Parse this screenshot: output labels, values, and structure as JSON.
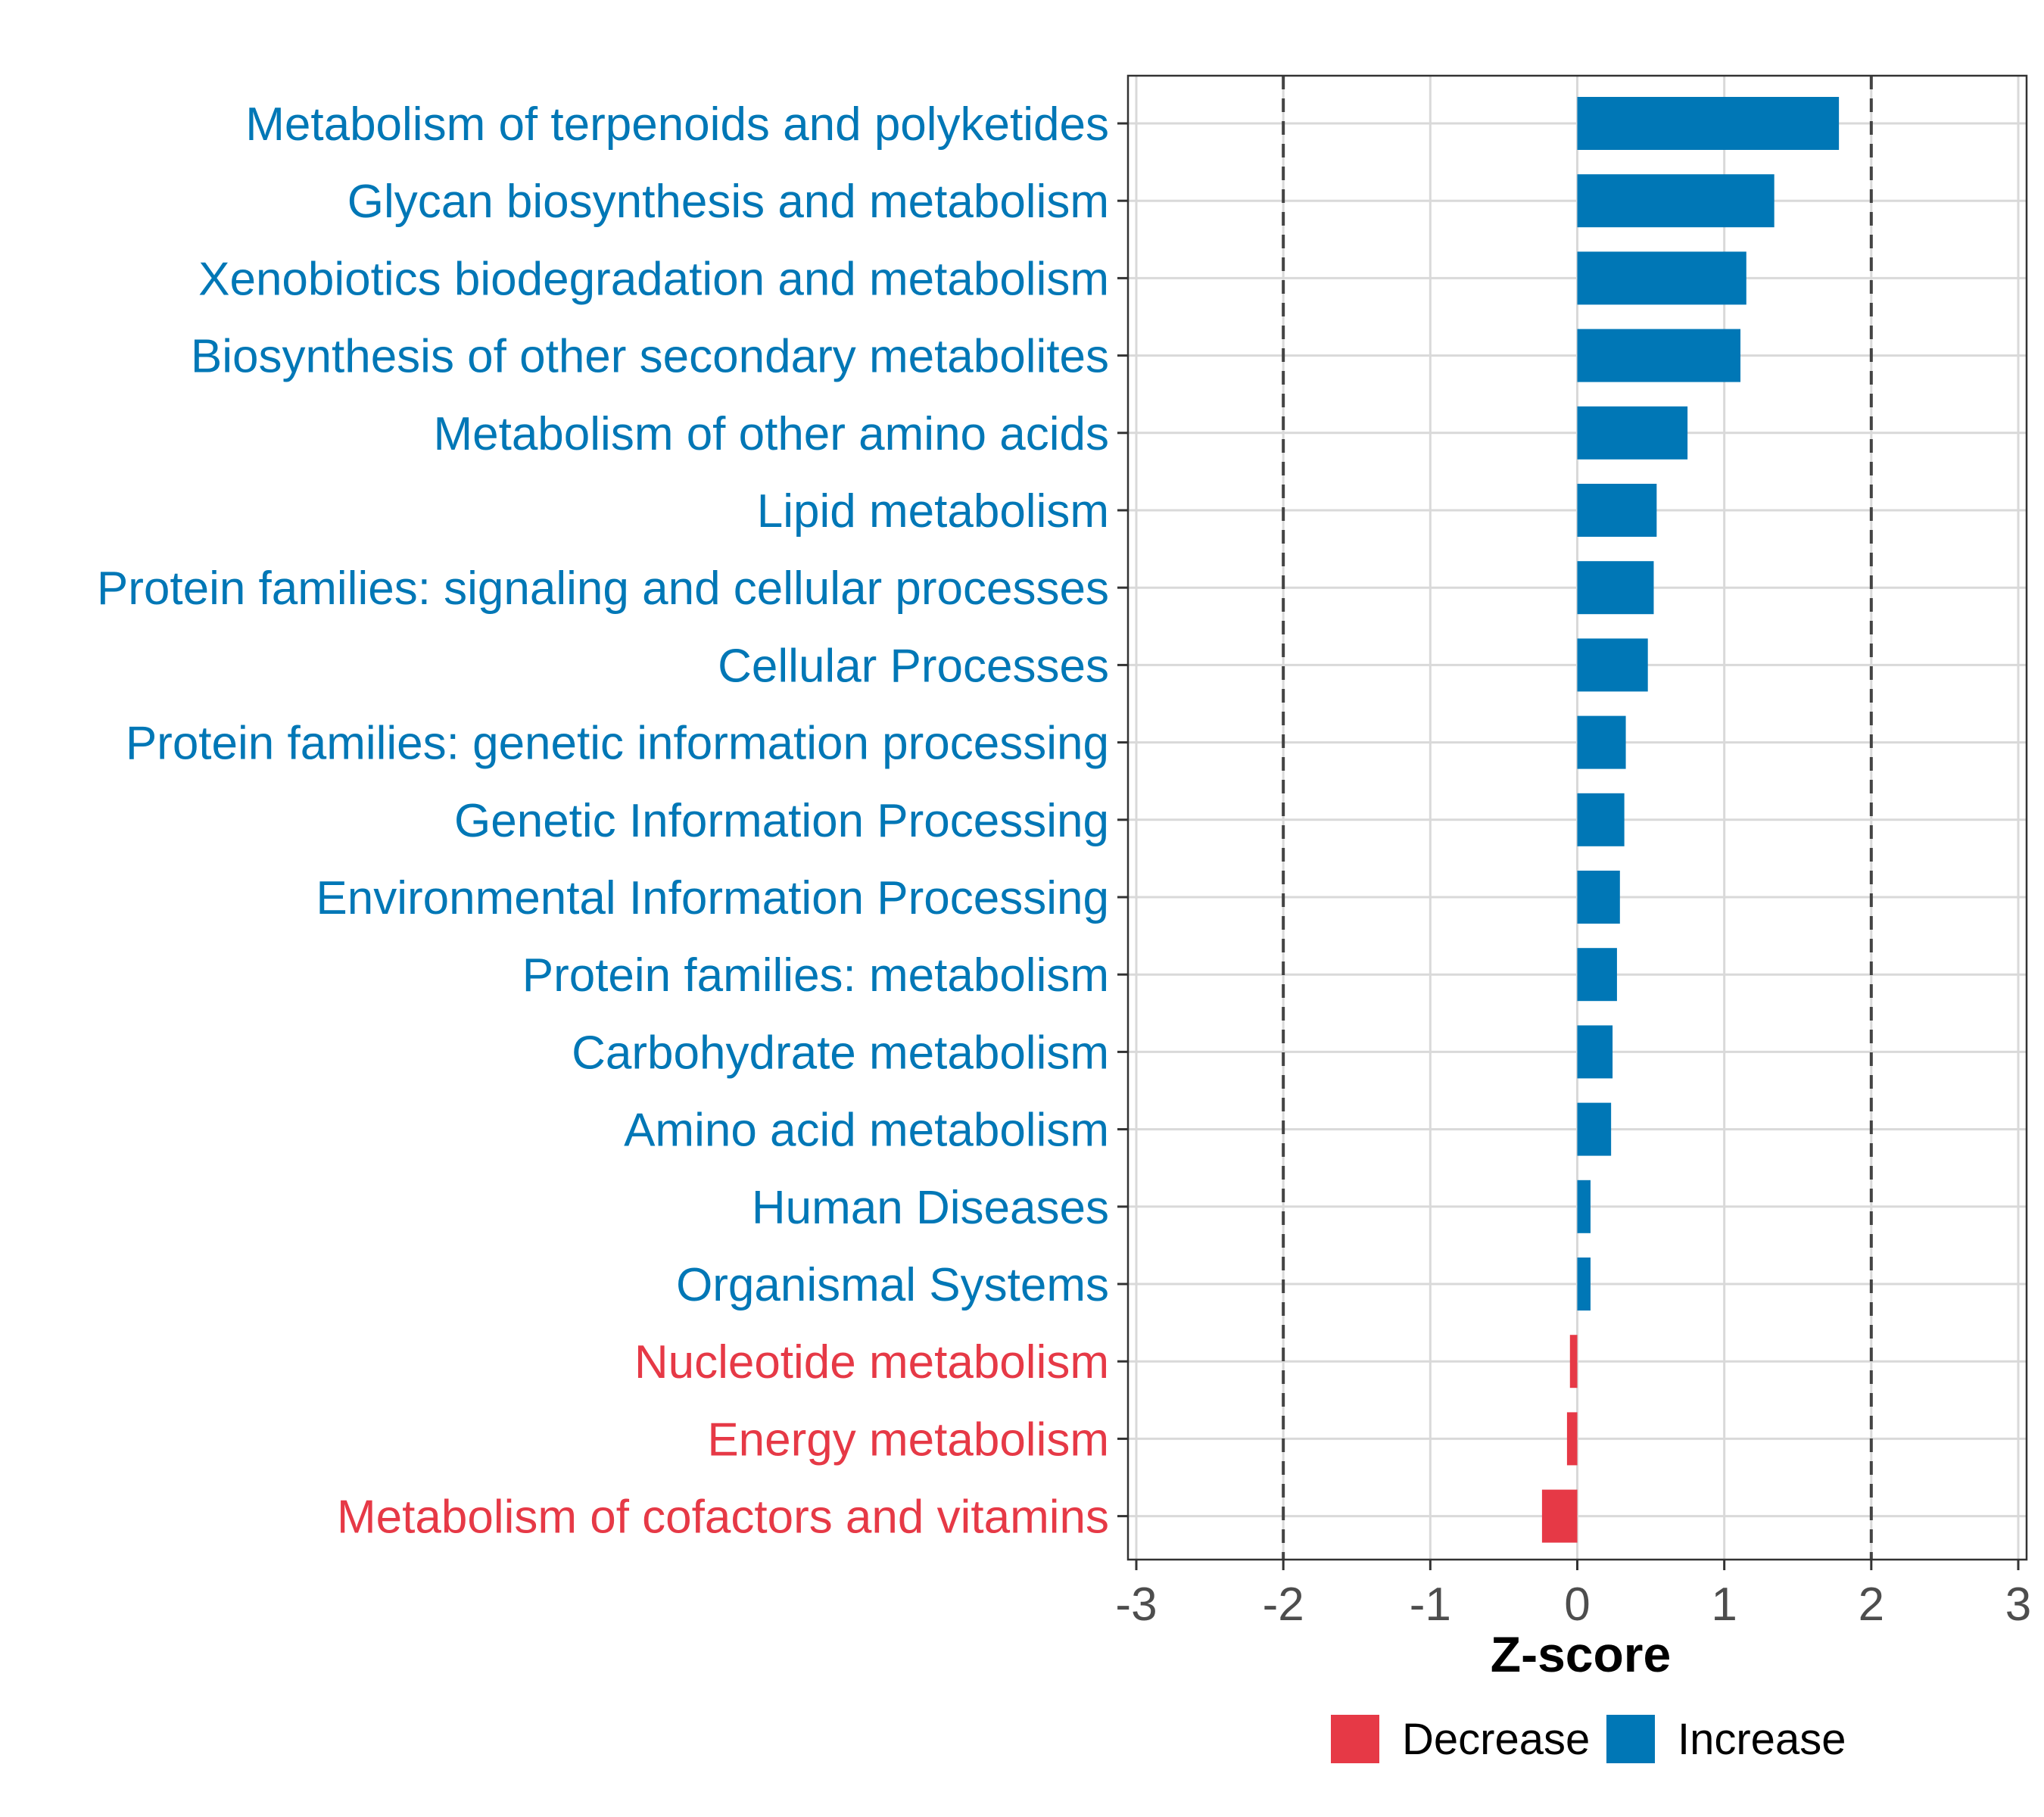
{
  "chart_data": {
    "type": "bar",
    "orientation": "horizontal",
    "title": "",
    "xlabel": "Z-score",
    "ylabel": "",
    "xlim": [
      -3,
      3
    ],
    "xticks": [
      "-3",
      "-2",
      "-1",
      "0",
      "1",
      "2",
      "3"
    ],
    "reference_lines": [
      -2,
      2
    ],
    "grid": true,
    "categories": [
      "Metabolism of terpenoids and polyketides",
      "Glycan biosynthesis and metabolism",
      "Xenobiotics biodegradation and metabolism",
      "Biosynthesis of other secondary metabolites",
      "Metabolism of other amino acids",
      "Lipid metabolism",
      "Protein families: signaling and cellular processes",
      "Cellular Processes",
      "Protein families: genetic information processing",
      "Genetic Information Processing",
      "Environmental Information Processing",
      "Protein families: metabolism",
      "Carbohydrate metabolism",
      "Amino acid metabolism",
      "Human Diseases",
      "Organismal Systems",
      "Nucleotide metabolism",
      "Energy metabolism",
      "Metabolism of cofactors and vitamins"
    ],
    "values": [
      1.78,
      1.34,
      1.15,
      1.11,
      0.75,
      0.54,
      0.52,
      0.48,
      0.33,
      0.32,
      0.29,
      0.27,
      0.24,
      0.23,
      0.09,
      0.09,
      -0.05,
      -0.07,
      -0.24
    ],
    "groups": [
      "Increase",
      "Increase",
      "Increase",
      "Increase",
      "Increase",
      "Increase",
      "Increase",
      "Increase",
      "Increase",
      "Increase",
      "Increase",
      "Increase",
      "Increase",
      "Increase",
      "Increase",
      "Increase",
      "Decrease",
      "Decrease",
      "Decrease"
    ],
    "legend": {
      "placement": "bottom",
      "entries": [
        {
          "label": "Decrease",
          "color": "#E63946"
        },
        {
          "label": "Increase",
          "color": "#0077B6"
        }
      ]
    },
    "colors": {
      "Increase": "#0077B6",
      "Decrease": "#E63946"
    }
  }
}
